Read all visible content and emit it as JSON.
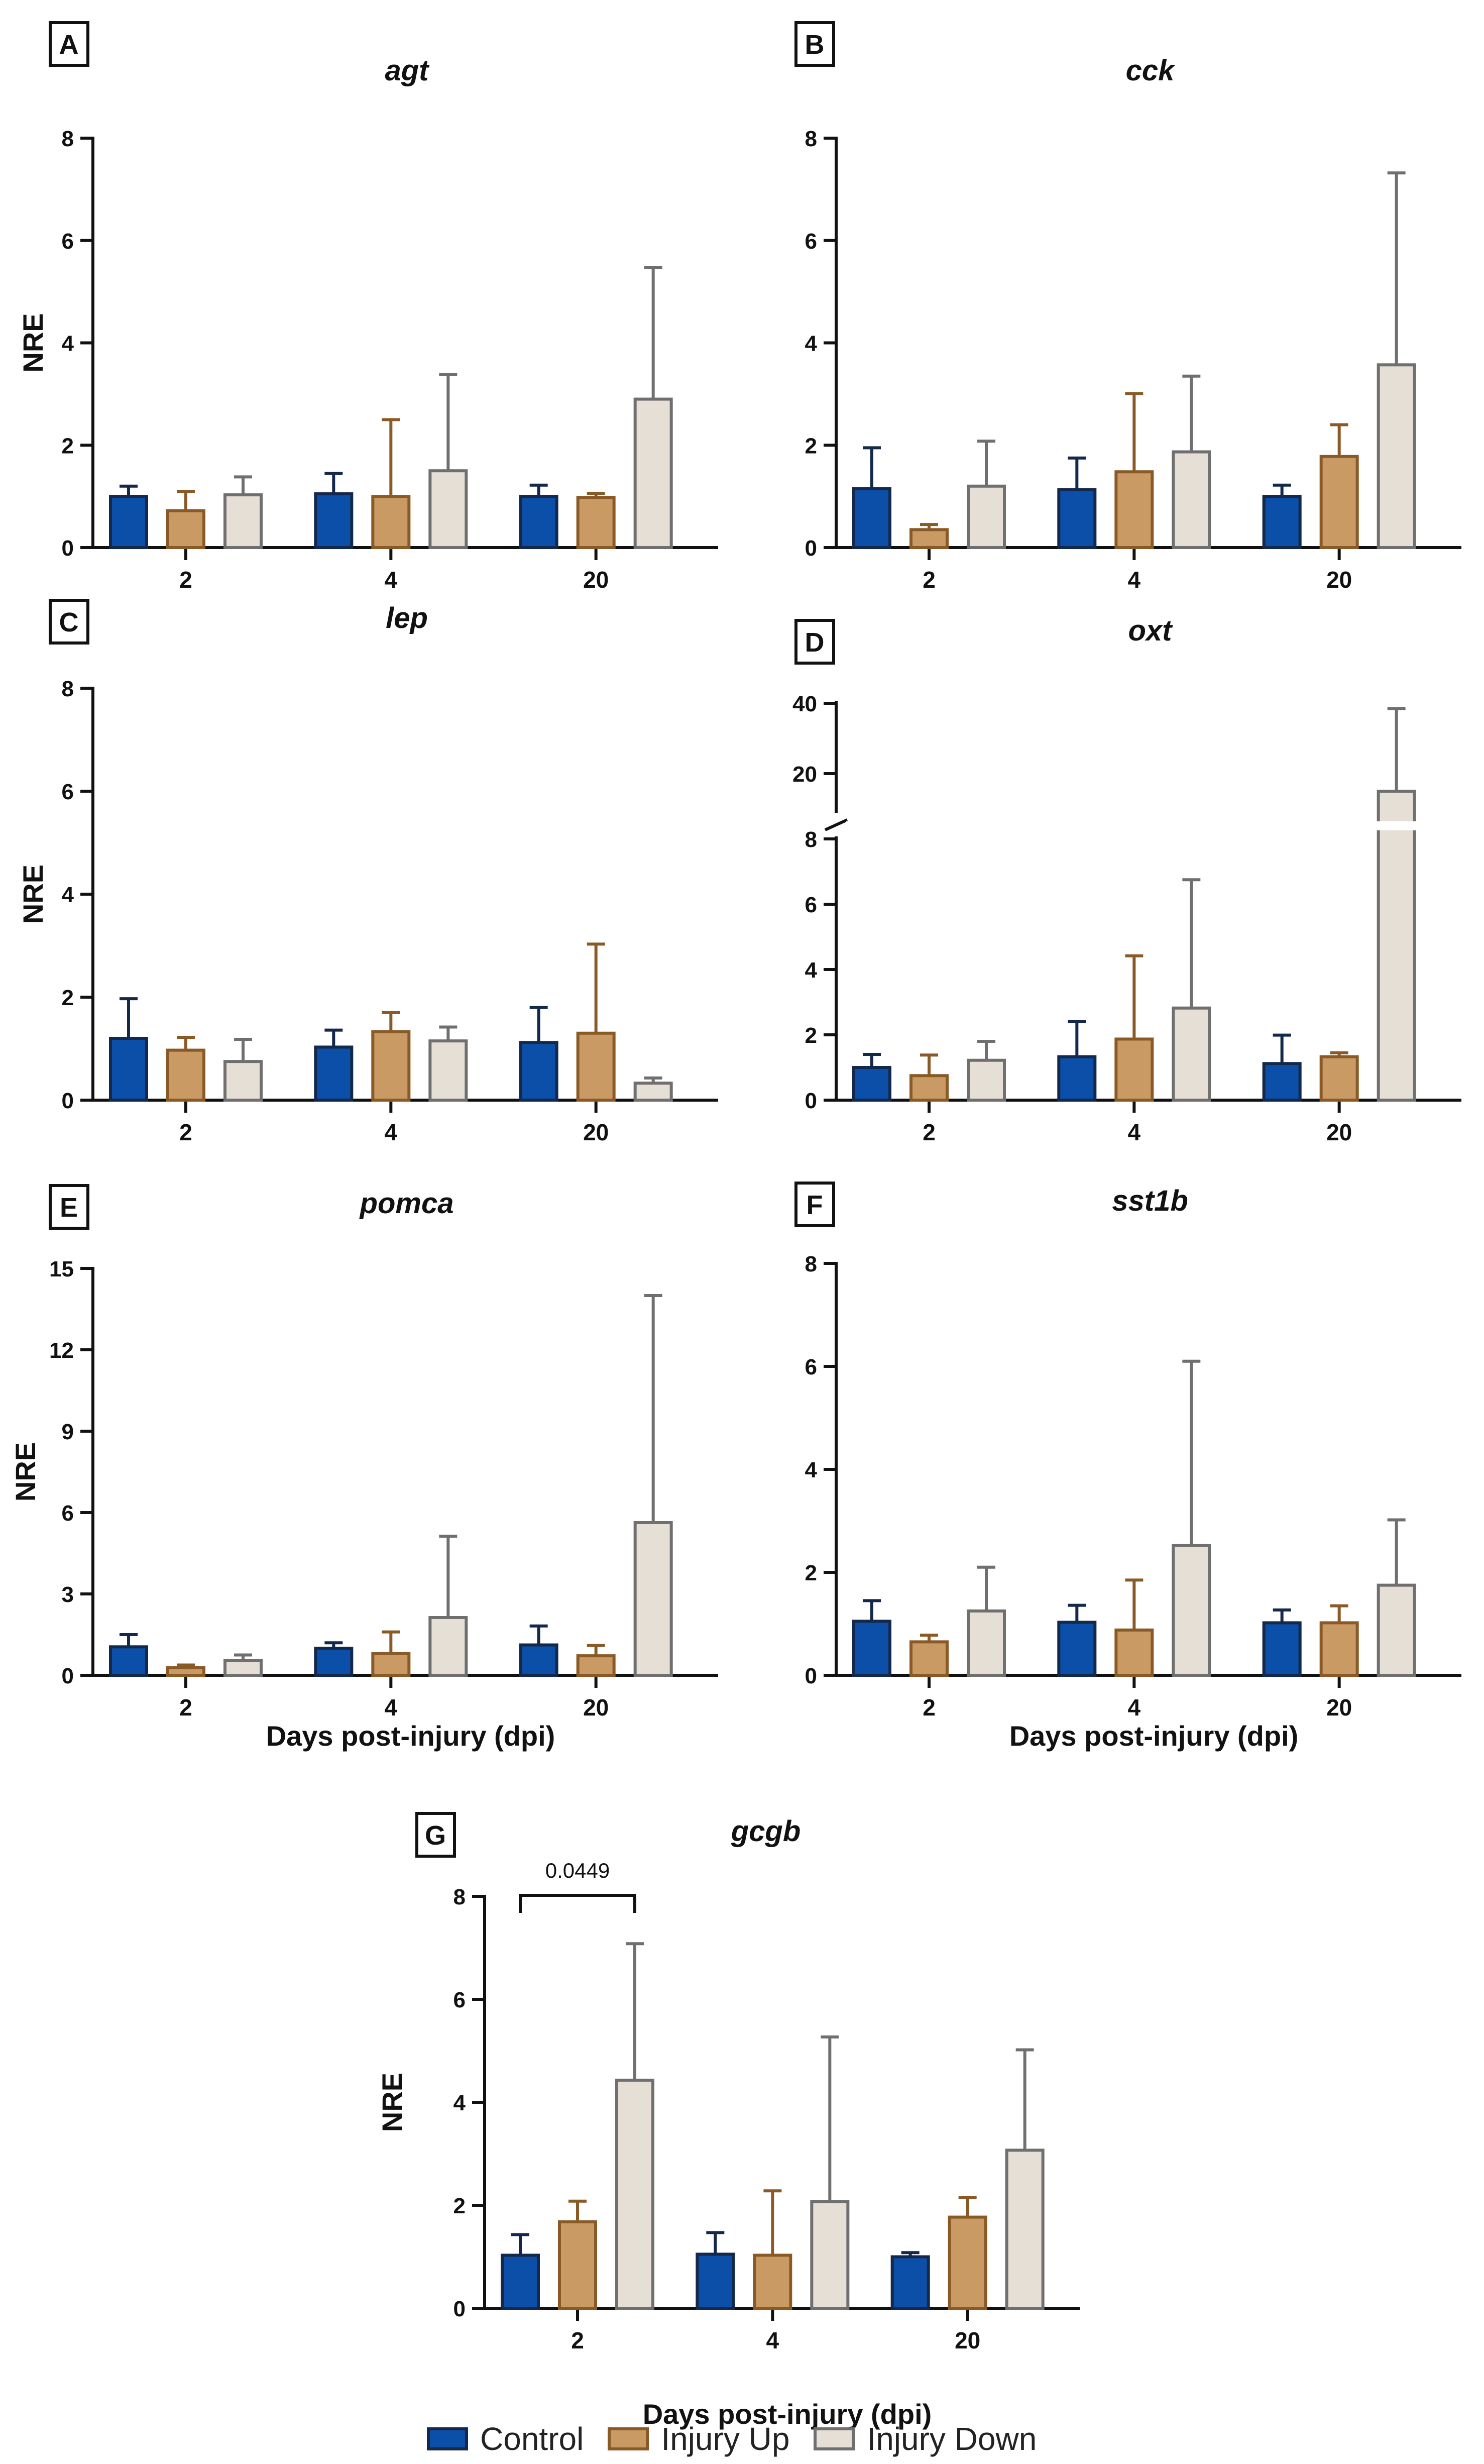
{
  "figure": {
    "series_names": [
      "Control",
      "Injury Up",
      "Injury Down"
    ],
    "series_colors": {
      "Control": {
        "fill": "#0b4fa8",
        "stroke": "#13284a"
      },
      "Injury Up": {
        "fill": "#c99a63",
        "stroke": "#8a5a26"
      },
      "Injury Down": {
        "fill": "#e6dfd5",
        "stroke": "#6f6f6f"
      }
    }
  },
  "chart_data": [
    {
      "panel": "A",
      "title": "agt",
      "type": "bar",
      "ylabel": "NRE",
      "xlabel": "",
      "categories": [
        "2",
        "4",
        "20"
      ],
      "ylim": [
        0,
        8
      ],
      "yticks": [
        "0",
        "2",
        "4",
        "6",
        "8"
      ],
      "series": [
        {
          "name": "Control",
          "values": [
            1.0,
            1.05,
            1.0
          ],
          "errors": [
            0.2,
            0.4,
            0.22
          ]
        },
        {
          "name": "Injury Up",
          "values": [
            0.72,
            1.0,
            0.98
          ],
          "errors": [
            0.38,
            1.5,
            0.08
          ]
        },
        {
          "name": "Injury Down",
          "values": [
            1.03,
            1.5,
            2.9
          ],
          "errors": [
            0.35,
            1.88,
            2.57
          ]
        }
      ]
    },
    {
      "panel": "B",
      "title": "cck",
      "type": "bar",
      "ylabel": "",
      "xlabel": "",
      "categories": [
        "2",
        "4",
        "20"
      ],
      "ylim": [
        0,
        8
      ],
      "yticks": [
        "0",
        "2",
        "4",
        "6",
        "8"
      ],
      "series": [
        {
          "name": "Control",
          "values": [
            1.15,
            1.13,
            1.0
          ],
          "errors": [
            0.8,
            0.62,
            0.22
          ]
        },
        {
          "name": "Injury Up",
          "values": [
            0.35,
            1.48,
            1.78
          ],
          "errors": [
            0.1,
            1.53,
            0.62
          ]
        },
        {
          "name": "Injury Down",
          "values": [
            1.2,
            1.87,
            3.57
          ],
          "errors": [
            0.88,
            1.48,
            3.75
          ]
        }
      ]
    },
    {
      "panel": "C",
      "title": "lep",
      "type": "bar",
      "ylabel": "NRE",
      "xlabel": "",
      "categories": [
        "2",
        "4",
        "20"
      ],
      "ylim": [
        0,
        8
      ],
      "yticks": [
        "0",
        "2",
        "4",
        "6",
        "8"
      ],
      "series": [
        {
          "name": "Control",
          "values": [
            1.2,
            1.03,
            1.12
          ],
          "errors": [
            0.77,
            0.33,
            0.68
          ]
        },
        {
          "name": "Injury Up",
          "values": [
            0.97,
            1.33,
            1.3
          ],
          "errors": [
            0.25,
            0.37,
            1.73
          ]
        },
        {
          "name": "Injury Down",
          "values": [
            0.75,
            1.15,
            0.33
          ],
          "errors": [
            0.43,
            0.27,
            0.1
          ]
        }
      ]
    },
    {
      "panel": "D",
      "title": "oxt",
      "type": "bar",
      "ylabel": "",
      "xlabel": "",
      "categories": [
        "2",
        "4",
        "20"
      ],
      "ylim": [
        0,
        40
      ],
      "yticks": [
        "0",
        "2",
        "4",
        "6",
        "8",
        "20",
        "40"
      ],
      "axis_break": {
        "lower": [
          0,
          8
        ],
        "upper": [
          10,
          40
        ]
      },
      "series": [
        {
          "name": "Control",
          "values": [
            1.0,
            1.33,
            1.12
          ],
          "errors": [
            0.4,
            1.08,
            0.87
          ]
        },
        {
          "name": "Injury Up",
          "values": [
            0.75,
            1.87,
            1.33
          ],
          "errors": [
            0.63,
            2.55,
            0.12
          ]
        },
        {
          "name": "Injury Down",
          "values": [
            1.22,
            2.82,
            15.0
          ],
          "errors": [
            0.58,
            3.93,
            23.5
          ]
        }
      ]
    },
    {
      "panel": "E",
      "title": "pomca",
      "type": "bar",
      "ylabel": "NRE",
      "xlabel": "Days post-injury (dpi)",
      "categories": [
        "2",
        "4",
        "20"
      ],
      "ylim": [
        0,
        15
      ],
      "yticks": [
        "0",
        "3",
        "6",
        "9",
        "12",
        "15"
      ],
      "series": [
        {
          "name": "Control",
          "values": [
            1.05,
            1.0,
            1.12
          ],
          "errors": [
            0.45,
            0.2,
            0.7
          ]
        },
        {
          "name": "Injury Up",
          "values": [
            0.28,
            0.8,
            0.72
          ],
          "errors": [
            0.1,
            0.8,
            0.38
          ]
        },
        {
          "name": "Injury Down",
          "values": [
            0.55,
            2.13,
            5.63
          ],
          "errors": [
            0.2,
            3.0,
            8.37
          ]
        }
      ]
    },
    {
      "panel": "F",
      "title": "sst1b",
      "type": "bar",
      "ylabel": "",
      "xlabel": "Days post-injury (dpi)",
      "categories": [
        "2",
        "4",
        "20"
      ],
      "ylim": [
        0,
        8
      ],
      "yticks": [
        "0",
        "2",
        "4",
        "6",
        "8"
      ],
      "series": [
        {
          "name": "Control",
          "values": [
            1.05,
            1.03,
            1.02
          ],
          "errors": [
            0.4,
            0.33,
            0.25
          ]
        },
        {
          "name": "Injury Up",
          "values": [
            0.65,
            0.88,
            1.02
          ],
          "errors": [
            0.13,
            0.97,
            0.33
          ]
        },
        {
          "name": "Injury Down",
          "values": [
            1.25,
            2.52,
            1.75
          ],
          "errors": [
            0.85,
            3.58,
            1.27
          ]
        }
      ]
    },
    {
      "panel": "G",
      "title": "gcgb",
      "type": "bar",
      "ylabel": "NRE",
      "xlabel": "Days post-injury (dpi)",
      "categories": [
        "2",
        "4",
        "20"
      ],
      "ylim": [
        0,
        8
      ],
      "yticks": [
        "0",
        "2",
        "4",
        "6",
        "8"
      ],
      "annotation": {
        "text": "0.0449",
        "from_series": 0,
        "to_series": 2,
        "category": 0
      },
      "series": [
        {
          "name": "Control",
          "values": [
            1.03,
            1.05,
            1.0
          ],
          "errors": [
            0.4,
            0.42,
            0.08
          ]
        },
        {
          "name": "Injury Up",
          "values": [
            1.68,
            1.03,
            1.77
          ],
          "errors": [
            0.4,
            1.25,
            0.38
          ]
        },
        {
          "name": "Injury Down",
          "values": [
            4.43,
            2.07,
            3.07
          ],
          "errors": [
            2.65,
            3.2,
            1.95
          ]
        }
      ]
    }
  ]
}
